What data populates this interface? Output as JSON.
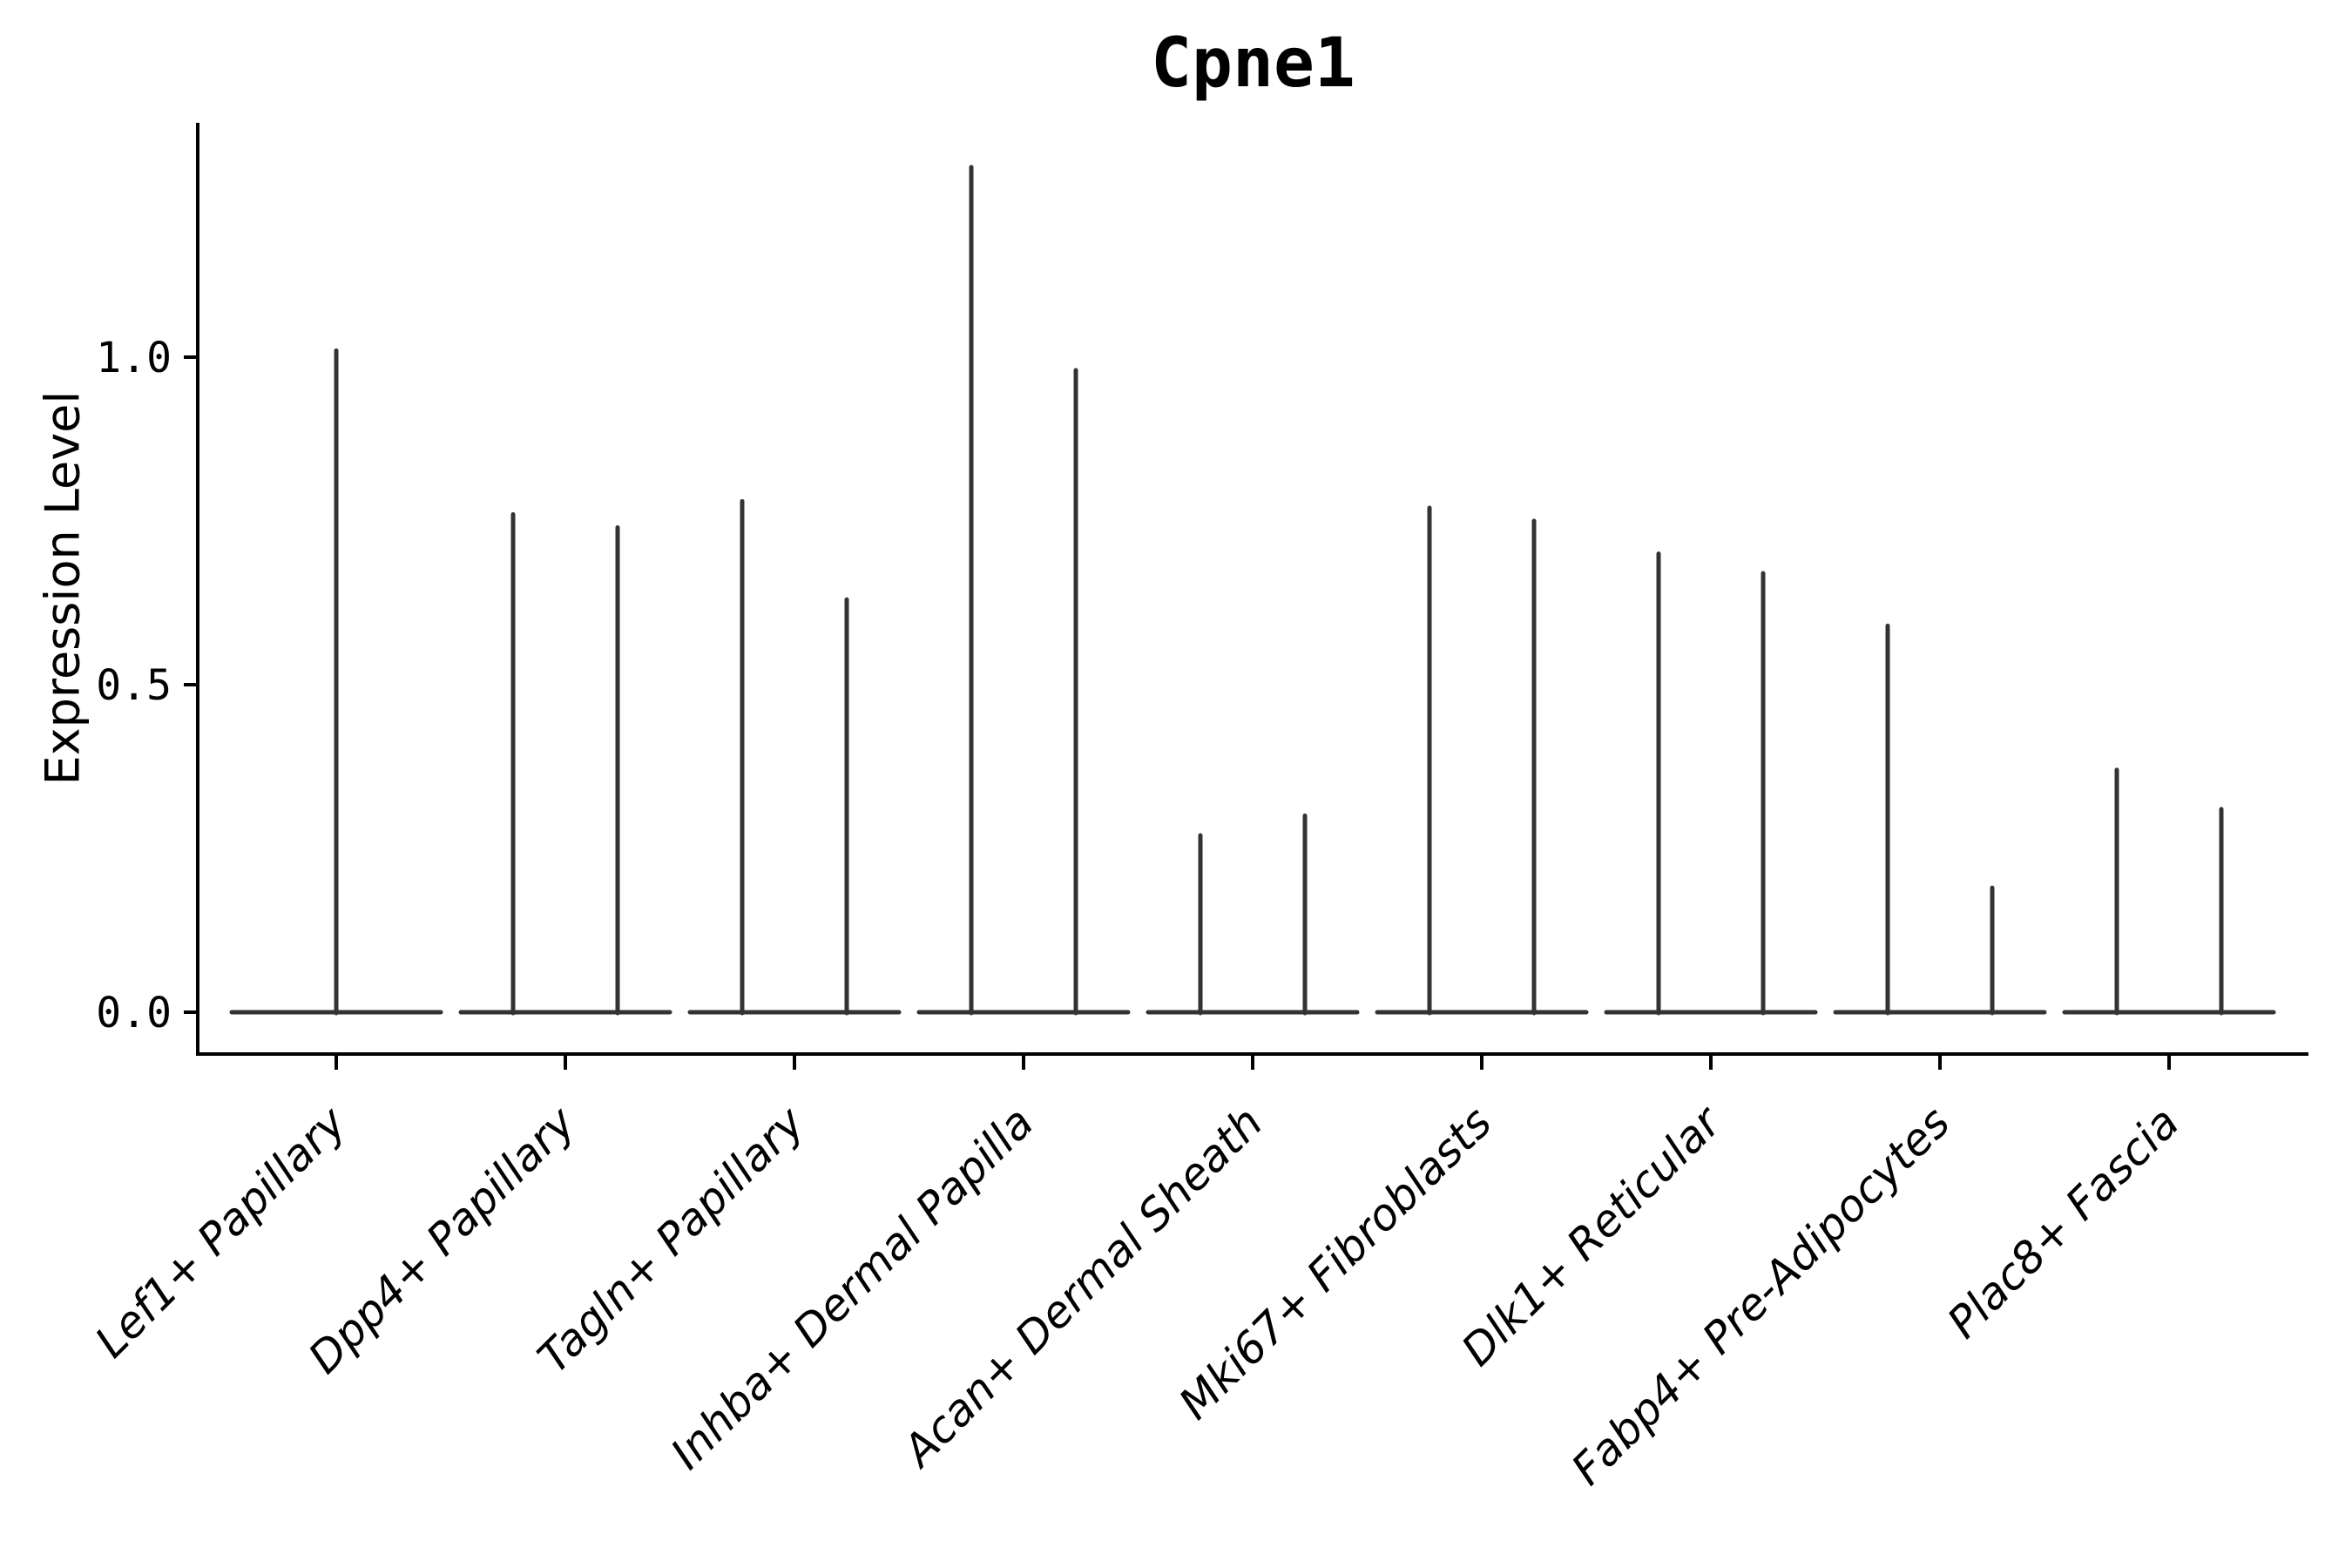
{
  "chart_data": {
    "type": "violin",
    "title": "Cpne1",
    "ylabel": "Expression Level",
    "xlabel": "",
    "ytick_labels": [
      "0.0",
      "0.5",
      "1.0"
    ],
    "ytick_values": [
      0.0,
      0.5,
      1.0
    ],
    "ylim": [
      -0.06,
      1.36
    ],
    "grid": false,
    "legend": "none",
    "x_tick_rotation": 45,
    "baseline_value": 0.0,
    "categories": [
      "Lef1+ Papillary",
      "Dpp4+ Papillary",
      "Tagln+ Papillary",
      "Inhba+ Dermal Papilla",
      "Acan+ Dermal Sheath",
      "Mki67+ Fibroblasts",
      "Dlk1+ Reticular",
      "Fabp4+ Pre-Adipocytes",
      "Plac8+ Fascia"
    ],
    "violins": [
      {
        "category": "Lef1+ Papillary",
        "maxima": [
          1.01
        ]
      },
      {
        "category": "Dpp4+ Papillary",
        "maxima": [
          0.76,
          0.74
        ]
      },
      {
        "category": "Tagln+ Papillary",
        "maxima": [
          0.78,
          0.63
        ]
      },
      {
        "category": "Inhba+ Dermal Papilla",
        "maxima": [
          1.29,
          0.98
        ]
      },
      {
        "category": "Acan+ Dermal Sheath",
        "maxima": [
          0.27,
          0.3
        ]
      },
      {
        "category": "Mki67+ Fibroblasts",
        "maxima": [
          0.77,
          0.75
        ]
      },
      {
        "category": "Dlk1+ Reticular",
        "maxima": [
          0.7,
          0.67
        ]
      },
      {
        "category": "Fabp4+ Pre-Adipocytes",
        "maxima": [
          0.59,
          0.19
        ]
      },
      {
        "category": "Plac8+ Fascia",
        "maxima": [
          0.37,
          0.31
        ]
      }
    ],
    "colors": {
      "violin": "#333333",
      "axis": "#000000",
      "text": "#000000",
      "background": "#ffffff"
    }
  }
}
